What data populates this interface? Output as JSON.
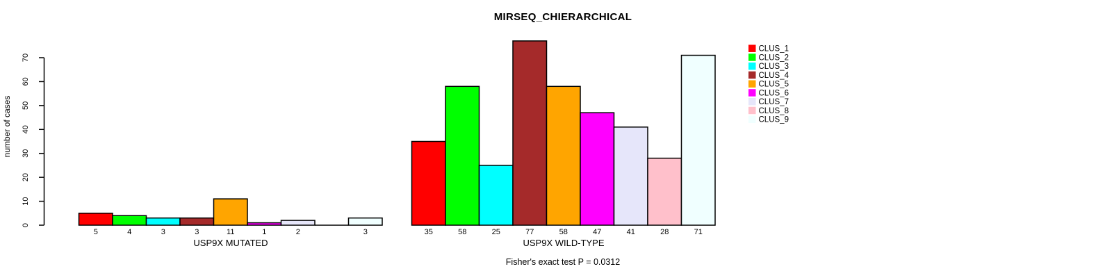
{
  "header": {
    "title": "MIRSEQ_CHIERARCHICAL"
  },
  "chart_data": {
    "type": "bar",
    "title": "MIRSEQ_CHIERARCHICAL",
    "xlabel": "",
    "ylabel": "number of cases",
    "ylim": [
      0,
      77
    ],
    "yticks": [
      0,
      10,
      20,
      30,
      40,
      50,
      60,
      70
    ],
    "grid": false,
    "legend_position": "top-right",
    "legend": [
      {
        "label": "CLUS_1",
        "color": "#FF0000"
      },
      {
        "label": "CLUS_2",
        "color": "#00FF00"
      },
      {
        "label": "CLUS_3",
        "color": "#00FFFF"
      },
      {
        "label": "CLUS_4",
        "color": "#A52A2A"
      },
      {
        "label": "CLUS_5",
        "color": "#FFA500"
      },
      {
        "label": "CLUS_6",
        "color": "#FF00FF"
      },
      {
        "label": "CLUS_7",
        "color": "#E6E6FA"
      },
      {
        "label": "CLUS_8",
        "color": "#FFC0CB"
      },
      {
        "label": "CLUS_9",
        "color": "#F0FFFF"
      }
    ],
    "groups": [
      {
        "label": "USP9X MUTATED",
        "values": [
          5,
          4,
          3,
          3,
          11,
          1,
          2,
          0,
          3
        ],
        "bar_labels": [
          "5",
          "4",
          "3",
          "3",
          "11",
          "1",
          "2",
          "",
          "3"
        ]
      },
      {
        "label": "USP9X WILD-TYPE",
        "values": [
          35,
          58,
          25,
          77,
          58,
          47,
          41,
          28,
          71
        ],
        "bar_labels": [
          "35",
          "58",
          "25",
          "77",
          "58",
          "47",
          "41",
          "28",
          "71"
        ]
      }
    ],
    "annotation": "Fisher's exact test P = 0.0312"
  }
}
